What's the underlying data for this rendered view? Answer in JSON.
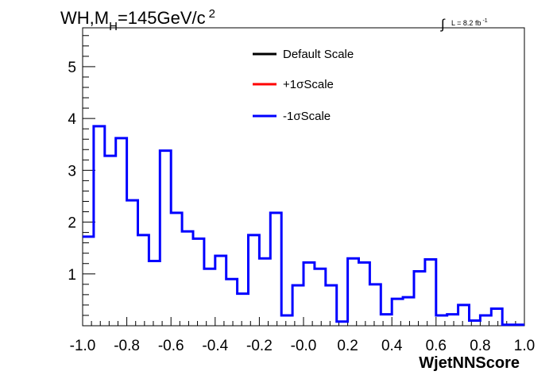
{
  "title": {
    "main": "WH,M",
    "subscript": "H",
    "rest": "=145GeV/c",
    "superscript": "2"
  },
  "lumi_label": {
    "integral": "∫",
    "text": "L = 8.2 fb",
    "superscript": "-1"
  },
  "legend": {
    "entries": [
      {
        "label": "Default Scale",
        "color": "#000000"
      },
      {
        "label": "+1σScale",
        "color": "#ff0000"
      },
      {
        "label": "-1σScale",
        "color": "#0000ff"
      }
    ]
  },
  "chart_data": {
    "type": "line",
    "xlabel": "WjetNNScore",
    "ylabel": "",
    "xlim": [
      -1.0,
      1.0
    ],
    "ylim": [
      0,
      5.75
    ],
    "xticks": [
      -1.0,
      -0.8,
      -0.6,
      -0.4,
      -0.2,
      0.0,
      0.2,
      0.4,
      0.6,
      0.8,
      1.0
    ],
    "xtick_labels": [
      "-1.0",
      "-0.8",
      "-0.6",
      "-0.4",
      "-0.2",
      "-0.0",
      "0.2",
      "0.4",
      "0.6",
      "0.8",
      "1.0"
    ],
    "yticks": [
      1,
      2,
      3,
      4,
      5
    ],
    "ytick_labels": [
      "1",
      "2",
      "3",
      "4",
      "5"
    ],
    "bin_edges": [
      -1.0,
      -0.95,
      -0.9,
      -0.85,
      -0.8,
      -0.75,
      -0.7,
      -0.65,
      -0.6,
      -0.55,
      -0.5,
      -0.45,
      -0.4,
      -0.35,
      -0.3,
      -0.25,
      -0.2,
      -0.15,
      -0.1,
      -0.05,
      0.0,
      0.05,
      0.1,
      0.15,
      0.2,
      0.25,
      0.3,
      0.35,
      0.4,
      0.45,
      0.5,
      0.55,
      0.6,
      0.65,
      0.7,
      0.75,
      0.8,
      0.85,
      0.9,
      0.95,
      1.0
    ],
    "series": [
      {
        "name": "-1σScale",
        "color": "#0000ff",
        "values": [
          1.72,
          3.85,
          3.28,
          3.62,
          2.42,
          1.75,
          1.25,
          3.38,
          2.18,
          1.82,
          1.68,
          1.1,
          1.35,
          0.9,
          0.62,
          1.75,
          1.3,
          2.18,
          0.2,
          0.78,
          1.22,
          1.1,
          0.78,
          0.08,
          1.3,
          1.22,
          0.8,
          0.22,
          0.52,
          0.55,
          1.05,
          1.28,
          0.2,
          0.22,
          0.4,
          0.1,
          0.2,
          0.33,
          0.02,
          0.02
        ]
      }
    ],
    "grid": false,
    "legend_position": "top-center"
  }
}
